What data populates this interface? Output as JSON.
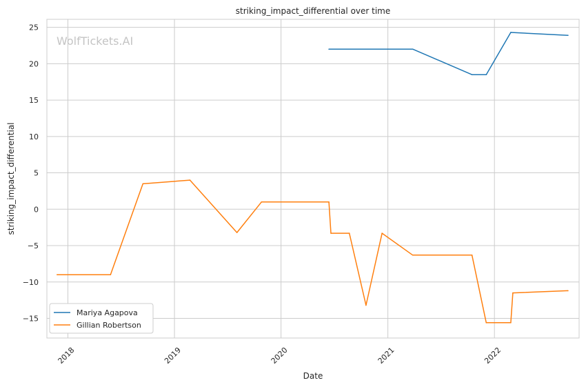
{
  "chart_data": {
    "type": "line",
    "title": "striking_impact_differential over time",
    "xlabel": "Date",
    "ylabel": "striking_impact_differential",
    "watermark": "WolfTickets.AI",
    "x_ticks": [
      "2018",
      "2019",
      "2020",
      "2021",
      "2022"
    ],
    "y_ticks": [
      25,
      20,
      15,
      10,
      5,
      0,
      -5,
      -10,
      -15
    ],
    "ylim": [
      -17.7,
      26.1
    ],
    "xlim": [
      "2017-10-21",
      "2022-10-18"
    ],
    "grid": true,
    "legend_position": "lower-left",
    "series": [
      {
        "name": "Mariya Agapova",
        "color": "#1f77b4",
        "points": [
          {
            "x": "2020-06-13",
            "y": 22.0
          },
          {
            "x": "2021-03-27",
            "y": 22.0
          },
          {
            "x": "2021-10-16",
            "y": 18.5
          },
          {
            "x": "2021-12-04",
            "y": 18.5
          },
          {
            "x": "2022-02-26",
            "y": 24.3
          },
          {
            "x": "2022-09-10",
            "y": 23.9
          }
        ]
      },
      {
        "name": "Gillian Robertson",
        "color": "#ff7f0e",
        "points": [
          {
            "x": "2017-11-25",
            "y": -9.0
          },
          {
            "x": "2018-05-27",
            "y": -9.0
          },
          {
            "x": "2018-09-15",
            "y": 3.5
          },
          {
            "x": "2019-02-23",
            "y": 4.0
          },
          {
            "x": "2019-08-03",
            "y": -3.2
          },
          {
            "x": "2019-10-26",
            "y": 1.0
          },
          {
            "x": "2020-06-13",
            "y": 1.0
          },
          {
            "x": "2020-06-20",
            "y": -3.3
          },
          {
            "x": "2020-08-22",
            "y": -3.3
          },
          {
            "x": "2020-10-18",
            "y": -13.2
          },
          {
            "x": "2020-12-12",
            "y": -3.3
          },
          {
            "x": "2021-03-27",
            "y": -6.3
          },
          {
            "x": "2021-10-16",
            "y": -6.3
          },
          {
            "x": "2021-12-04",
            "y": -15.6
          },
          {
            "x": "2022-02-26",
            "y": -15.6
          },
          {
            "x": "2022-03-05",
            "y": -11.5
          },
          {
            "x": "2022-09-10",
            "y": -11.2
          }
        ]
      }
    ]
  }
}
